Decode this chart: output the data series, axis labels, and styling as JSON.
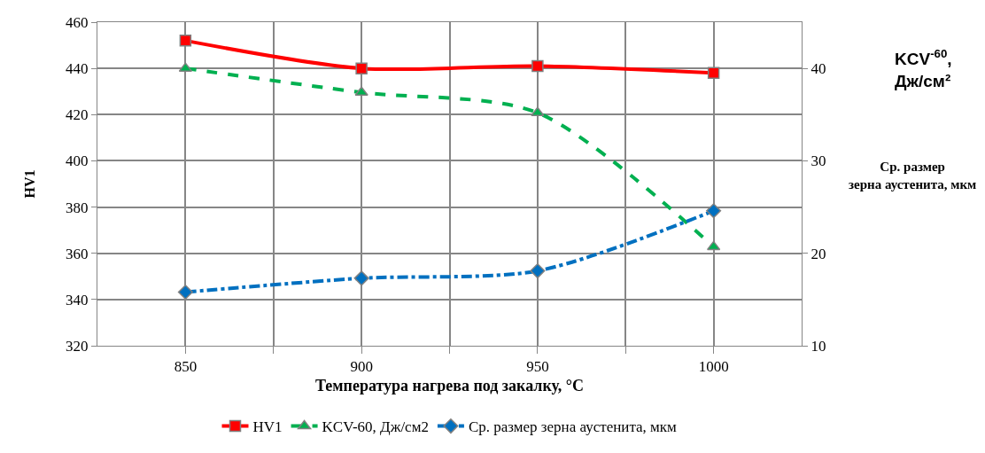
{
  "chart_data": {
    "type": "line",
    "x": [
      850,
      900,
      950,
      1000
    ],
    "xlim": [
      825,
      1025
    ],
    "xticks": [
      850,
      {
        "value": 875,
        "label": null
      },
      900,
      {
        "value": 925,
        "label": null
      },
      950,
      {
        "value": 975,
        "label": null
      },
      1000
    ],
    "ylim": [
      320,
      460
    ],
    "yticks": [
      320,
      340,
      360,
      380,
      400,
      420,
      440,
      460
    ],
    "y2lim": [
      10,
      45
    ],
    "y2ticks": [
      10,
      20,
      30,
      40
    ],
    "xlabel": "Температура нагрева под закалку, °С",
    "ylabel": "HV1",
    "y2label": "KCV$^{-60}$, Дж/см²",
    "annotations": [
      "Ср. размер зерна аустенита, мкм"
    ],
    "grid": true,
    "legend": "bottom",
    "series": [
      {
        "name": "HV1",
        "color": "#ff0000",
        "values": [
          452,
          440,
          441,
          438
        ],
        "marker": "square",
        "line_style": "solid"
      },
      {
        "name": "KCV-60, Дж/см2",
        "color": "#00b050",
        "values": [
          40,
          37.4,
          35.2,
          20.7
        ],
        "axis": "y2",
        "marker": "triangle",
        "line_style": "dashed"
      },
      {
        "name": "Ср. размер зерна аустенита, мкм",
        "color": "#0070c0",
        "values": [
          15.8,
          17.3,
          18.1,
          24.6
        ],
        "axis": "y2",
        "marker": "diamond",
        "line_style": "dashdot"
      }
    ]
  }
}
